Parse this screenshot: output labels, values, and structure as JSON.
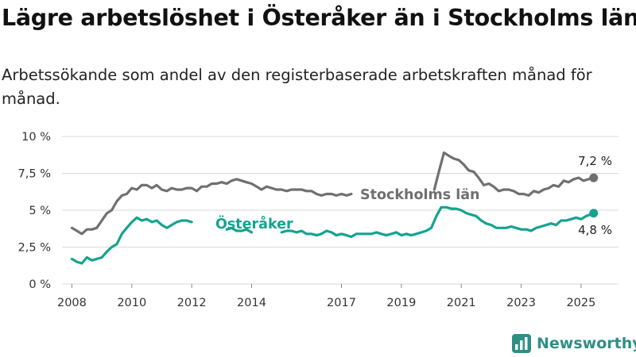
{
  "header": {
    "title": "Lägre arbetslöshet i Österåker än i Stockholms län",
    "subtitle": "Arbetssökande som andel av den registerbaserade arbetskraften månad för månad."
  },
  "brand": {
    "name": "Newsworthy",
    "logo_icon": "bar-chart-icon",
    "color": "#2e8f85"
  },
  "chart_data": {
    "type": "line",
    "title": "Lägre arbetslöshet i Österåker än i Stockholms län",
    "subtitle": "Arbetssökande som andel av den registerbaserade arbetskraften månad för månad.",
    "xlabel": "",
    "ylabel": "",
    "ylim": [
      0,
      10
    ],
    "xlim": [
      2007.67,
      2026.25
    ],
    "grid": true,
    "legend": "none",
    "y_ticks": [
      {
        "value": 0,
        "label": "0 %"
      },
      {
        "value": 2.5,
        "label": "2,5 %"
      },
      {
        "value": 5,
        "label": "5 %"
      },
      {
        "value": 7.5,
        "label": "7,5 %"
      },
      {
        "value": 10,
        "label": "10 %"
      }
    ],
    "x_ticks": [
      {
        "value": 2008,
        "label": "2008"
      },
      {
        "value": 2010,
        "label": "2010"
      },
      {
        "value": 2012,
        "label": "2012"
      },
      {
        "value": 2014,
        "label": "2014"
      },
      {
        "value": 2017,
        "label": "2017"
      },
      {
        "value": 2019,
        "label": "2019"
      },
      {
        "value": 2021,
        "label": "2021"
      },
      {
        "value": 2023,
        "label": "2023"
      },
      {
        "value": 2025,
        "label": "2025"
      }
    ],
    "series": [
      {
        "name": "Stockholms län",
        "color": "#707070",
        "end_label": "7,2 %",
        "points": [
          [
            2008.0,
            3.8
          ],
          [
            2008.17,
            3.6
          ],
          [
            2008.33,
            3.4
          ],
          [
            2008.5,
            3.7
          ],
          [
            2008.67,
            3.7
          ],
          [
            2008.83,
            3.8
          ],
          [
            2009.0,
            4.3
          ],
          [
            2009.17,
            4.8
          ],
          [
            2009.33,
            5.0
          ],
          [
            2009.5,
            5.6
          ],
          [
            2009.67,
            6.0
          ],
          [
            2009.83,
            6.1
          ],
          [
            2010.0,
            6.5
          ],
          [
            2010.17,
            6.4
          ],
          [
            2010.33,
            6.7
          ],
          [
            2010.5,
            6.7
          ],
          [
            2010.67,
            6.5
          ],
          [
            2010.83,
            6.7
          ],
          [
            2011.0,
            6.4
          ],
          [
            2011.17,
            6.3
          ],
          [
            2011.33,
            6.5
          ],
          [
            2011.5,
            6.4
          ],
          [
            2011.67,
            6.4
          ],
          [
            2011.83,
            6.5
          ],
          [
            2012.0,
            6.5
          ],
          [
            2012.17,
            6.3
          ],
          [
            2012.33,
            6.6
          ],
          [
            2012.5,
            6.6
          ],
          [
            2012.67,
            6.8
          ],
          [
            2012.83,
            6.8
          ],
          [
            2013.0,
            6.9
          ],
          [
            2013.17,
            6.8
          ],
          [
            2013.33,
            7.0
          ],
          [
            2013.5,
            7.1
          ],
          [
            2013.67,
            7.0
          ],
          [
            2013.83,
            6.9
          ],
          [
            2014.0,
            6.8
          ],
          [
            2014.17,
            6.6
          ],
          [
            2014.33,
            6.4
          ],
          [
            2014.5,
            6.6
          ],
          [
            2014.67,
            6.5
          ],
          [
            2014.83,
            6.4
          ],
          [
            2015.0,
            6.4
          ],
          [
            2015.17,
            6.3
          ],
          [
            2015.33,
            6.4
          ],
          [
            2015.5,
            6.4
          ],
          [
            2015.67,
            6.4
          ],
          [
            2015.83,
            6.3
          ],
          [
            2016.0,
            6.3
          ],
          [
            2016.17,
            6.1
          ],
          [
            2016.33,
            6.0
          ],
          [
            2016.5,
            6.1
          ],
          [
            2016.67,
            6.1
          ],
          [
            2016.83,
            6.0
          ],
          [
            2017.0,
            6.1
          ],
          [
            2017.17,
            6.0
          ],
          [
            2017.33,
            6.1
          ]
        ],
        "points_after_gap": [
          [
            2020.1,
            6.4
          ],
          [
            2020.25,
            7.6
          ],
          [
            2020.42,
            8.9
          ],
          [
            2020.58,
            8.7
          ],
          [
            2020.75,
            8.5
          ],
          [
            2020.92,
            8.4
          ],
          [
            2021.08,
            8.1
          ],
          [
            2021.25,
            7.7
          ],
          [
            2021.42,
            7.6
          ],
          [
            2021.58,
            7.2
          ],
          [
            2021.75,
            6.7
          ],
          [
            2021.92,
            6.8
          ],
          [
            2022.08,
            6.6
          ],
          [
            2022.25,
            6.3
          ],
          [
            2022.42,
            6.4
          ],
          [
            2022.58,
            6.4
          ],
          [
            2022.75,
            6.3
          ],
          [
            2022.92,
            6.1
          ],
          [
            2023.08,
            6.1
          ],
          [
            2023.25,
            6.0
          ],
          [
            2023.42,
            6.3
          ],
          [
            2023.58,
            6.2
          ],
          [
            2023.75,
            6.4
          ],
          [
            2023.92,
            6.5
          ],
          [
            2024.08,
            6.7
          ],
          [
            2024.25,
            6.6
          ],
          [
            2024.42,
            7.0
          ],
          [
            2024.58,
            6.9
          ],
          [
            2024.75,
            7.1
          ],
          [
            2024.92,
            7.2
          ],
          [
            2025.08,
            7.0
          ],
          [
            2025.25,
            7.1
          ],
          [
            2025.42,
            7.2
          ]
        ]
      },
      {
        "name": "Österåker",
        "color": "#14a38f",
        "end_label": "4,8 %",
        "points": [
          [
            2008.0,
            1.7
          ],
          [
            2008.17,
            1.5
          ],
          [
            2008.33,
            1.4
          ],
          [
            2008.5,
            1.8
          ],
          [
            2008.67,
            1.6
          ],
          [
            2008.83,
            1.7
          ],
          [
            2009.0,
            1.8
          ],
          [
            2009.17,
            2.2
          ],
          [
            2009.33,
            2.5
          ],
          [
            2009.5,
            2.7
          ],
          [
            2009.67,
            3.4
          ],
          [
            2009.83,
            3.8
          ],
          [
            2010.0,
            4.2
          ],
          [
            2010.17,
            4.5
          ],
          [
            2010.33,
            4.3
          ],
          [
            2010.5,
            4.4
          ],
          [
            2010.67,
            4.2
          ],
          [
            2010.83,
            4.3
          ],
          [
            2011.0,
            4.0
          ],
          [
            2011.17,
            3.8
          ],
          [
            2011.33,
            4.0
          ],
          [
            2011.5,
            4.2
          ],
          [
            2011.67,
            4.3
          ],
          [
            2011.83,
            4.3
          ],
          [
            2012.0,
            4.2
          ]
        ],
        "points_mid": [
          [
            2013.17,
            3.7
          ],
          [
            2013.33,
            3.8
          ],
          [
            2013.5,
            3.6
          ],
          [
            2013.67,
            3.6
          ],
          [
            2013.83,
            3.7
          ],
          [
            2014.0,
            3.5
          ]
        ],
        "points_after_gap": [
          [
            2015.0,
            3.5
          ],
          [
            2015.17,
            3.6
          ],
          [
            2015.33,
            3.6
          ],
          [
            2015.5,
            3.5
          ],
          [
            2015.67,
            3.6
          ],
          [
            2015.83,
            3.4
          ],
          [
            2016.0,
            3.4
          ],
          [
            2016.17,
            3.3
          ],
          [
            2016.33,
            3.4
          ],
          [
            2016.5,
            3.6
          ],
          [
            2016.67,
            3.5
          ],
          [
            2016.83,
            3.3
          ],
          [
            2017.0,
            3.4
          ],
          [
            2017.17,
            3.3
          ],
          [
            2017.33,
            3.2
          ],
          [
            2017.5,
            3.4
          ],
          [
            2017.67,
            3.4
          ],
          [
            2017.83,
            3.4
          ],
          [
            2018.0,
            3.4
          ],
          [
            2018.17,
            3.5
          ],
          [
            2018.33,
            3.4
          ],
          [
            2018.5,
            3.3
          ],
          [
            2018.67,
            3.4
          ],
          [
            2018.83,
            3.5
          ],
          [
            2019.0,
            3.3
          ],
          [
            2019.17,
            3.4
          ],
          [
            2019.33,
            3.3
          ],
          [
            2019.5,
            3.4
          ],
          [
            2019.67,
            3.5
          ],
          [
            2019.83,
            3.6
          ],
          [
            2020.0,
            3.8
          ],
          [
            2020.17,
            4.6
          ],
          [
            2020.33,
            5.2
          ],
          [
            2020.5,
            5.2
          ],
          [
            2020.67,
            5.1
          ],
          [
            2020.83,
            5.1
          ],
          [
            2021.0,
            5.0
          ],
          [
            2021.17,
            4.8
          ],
          [
            2021.33,
            4.7
          ],
          [
            2021.5,
            4.6
          ],
          [
            2021.67,
            4.3
          ],
          [
            2021.83,
            4.1
          ],
          [
            2022.0,
            4.0
          ],
          [
            2022.17,
            3.8
          ],
          [
            2022.33,
            3.8
          ],
          [
            2022.5,
            3.8
          ],
          [
            2022.67,
            3.9
          ],
          [
            2022.83,
            3.8
          ],
          [
            2023.0,
            3.7
          ],
          [
            2023.17,
            3.7
          ],
          [
            2023.33,
            3.6
          ],
          [
            2023.5,
            3.8
          ],
          [
            2023.67,
            3.9
          ],
          [
            2023.83,
            4.0
          ],
          [
            2024.0,
            4.1
          ],
          [
            2024.17,
            4.0
          ],
          [
            2024.33,
            4.3
          ],
          [
            2024.5,
            4.3
          ],
          [
            2024.67,
            4.4
          ],
          [
            2024.83,
            4.5
          ],
          [
            2025.0,
            4.4
          ],
          [
            2025.17,
            4.6
          ],
          [
            2025.42,
            4.8
          ]
        ]
      }
    ]
  }
}
